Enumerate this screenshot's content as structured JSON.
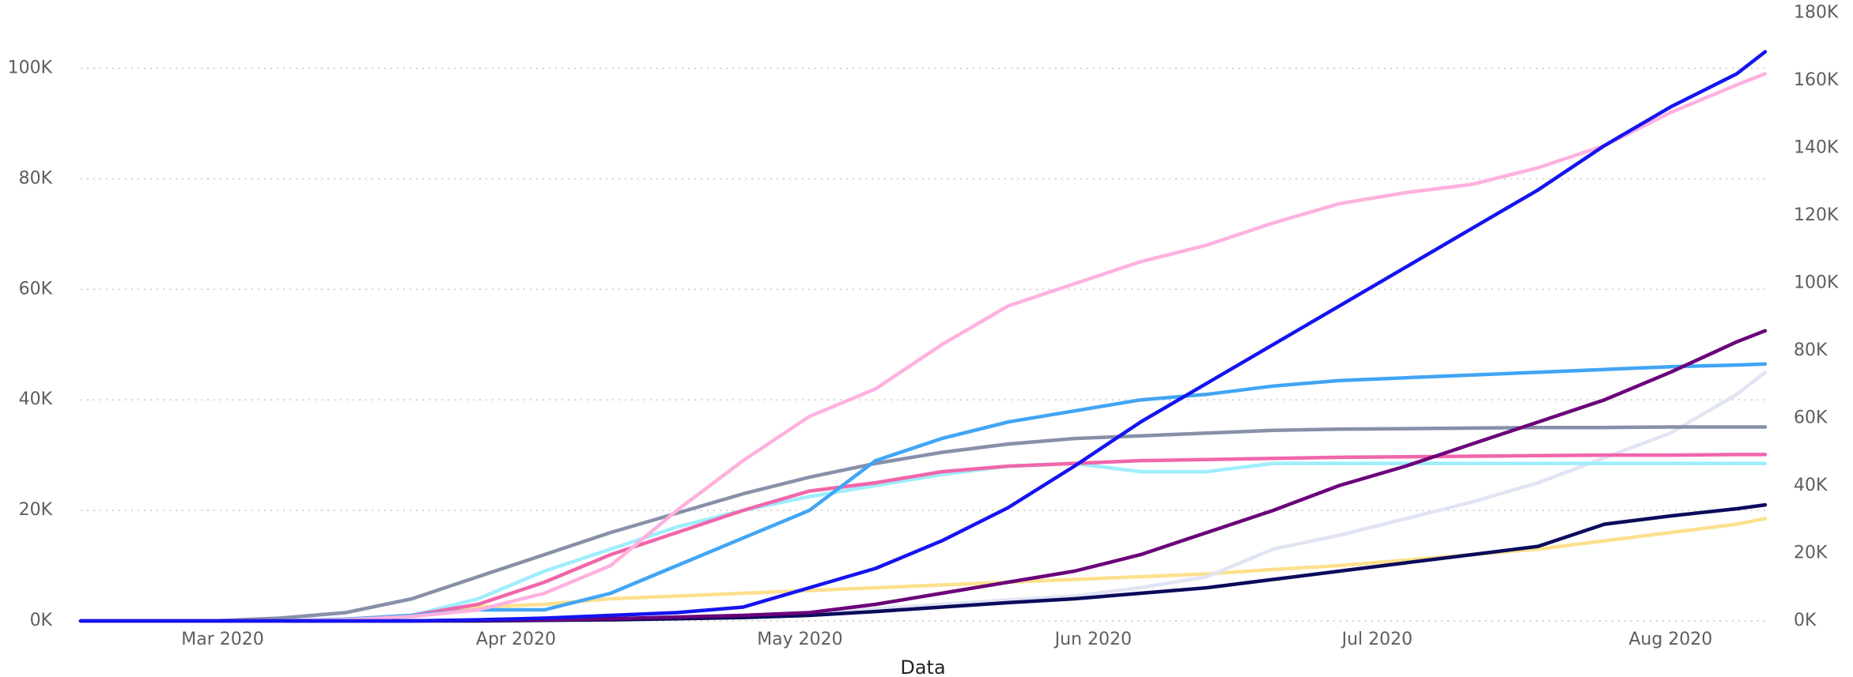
{
  "chart_data": {
    "type": "line",
    "x_label": "Data",
    "x": [
      "2020-02-15",
      "2020-02-22",
      "2020-02-29",
      "2020-03-07",
      "2020-03-14",
      "2020-03-21",
      "2020-03-28",
      "2020-04-04",
      "2020-04-11",
      "2020-04-18",
      "2020-04-25",
      "2020-05-02",
      "2020-05-09",
      "2020-05-16",
      "2020-05-23",
      "2020-05-30",
      "2020-06-06",
      "2020-06-13",
      "2020-06-20",
      "2020-06-27",
      "2020-07-04",
      "2020-07-11",
      "2020-07-18",
      "2020-07-25",
      "2020-08-01",
      "2020-08-08",
      "2020-08-11"
    ],
    "xlim": [
      "2020-02-15",
      "2020-08-11"
    ],
    "xticks": [
      {
        "value": "2020-03-01",
        "label": "Mar 2020"
      },
      {
        "value": "2020-04-01",
        "label": "Apr 2020"
      },
      {
        "value": "2020-05-01",
        "label": "May 2020"
      },
      {
        "value": "2020-06-01",
        "label": "Jun 2020"
      },
      {
        "value": "2020-07-01",
        "label": "Jul 2020"
      },
      {
        "value": "2020-08-01",
        "label": "Aug 2020"
      }
    ],
    "ylim": [
      0,
      110000
    ],
    "yticks": [
      {
        "value": 0,
        "label": "0K"
      },
      {
        "value": 20000,
        "label": "20K"
      },
      {
        "value": 40000,
        "label": "40K"
      },
      {
        "value": 60000,
        "label": "60K"
      },
      {
        "value": 80000,
        "label": "80K"
      },
      {
        "value": 100000,
        "label": "100K"
      }
    ],
    "y2lim": [
      0,
      180000
    ],
    "y2ticks": [
      {
        "value": 0,
        "label": "0K"
      },
      {
        "value": 20000,
        "label": "20K"
      },
      {
        "value": 40000,
        "label": "40K"
      },
      {
        "value": 60000,
        "label": "60K"
      },
      {
        "value": 80000,
        "label": "80K"
      },
      {
        "value": 100000,
        "label": "100K"
      },
      {
        "value": 120000,
        "label": "120K"
      },
      {
        "value": 140000,
        "label": "140K"
      },
      {
        "value": 160000,
        "label": "160K"
      },
      {
        "value": 180000,
        "label": "180K"
      }
    ],
    "grid": true,
    "series": [
      {
        "color": "#fde08e",
        "values": [
          0,
          0,
          0,
          0,
          300,
          1000,
          2500,
          3000,
          4000,
          4500,
          5000,
          5500,
          6000,
          6500,
          7000,
          7500,
          8000,
          8500,
          9300,
          10000,
          11000,
          12000,
          13000,
          14500,
          16000,
          17500,
          18500
        ]
      },
      {
        "color": "#e1e4f3",
        "values": [
          0,
          0,
          0,
          0,
          0,
          0,
          0,
          100,
          300,
          600,
          1000,
          1500,
          2200,
          3000,
          3800,
          4500,
          6000,
          8000,
          13000,
          15500,
          18500,
          21500,
          25000,
          29500,
          34000,
          41000,
          45000
        ]
      },
      {
        "color": "#9eeefc",
        "values": [
          0,
          0,
          0,
          0,
          200,
          1000,
          4000,
          9000,
          13000,
          17000,
          20000,
          22500,
          24500,
          26500,
          28000,
          28500,
          27000,
          27000,
          28500,
          28500,
          28500,
          28500,
          28500,
          28500,
          28500,
          28500,
          28500
        ]
      },
      {
        "color": "#f066aa",
        "values": [
          0,
          0,
          0,
          0,
          200,
          1000,
          3000,
          7000,
          12000,
          16000,
          20000,
          23500,
          25000,
          27000,
          28000,
          28500,
          29000,
          29200,
          29400,
          29600,
          29700,
          29800,
          29900,
          30000,
          30000,
          30100,
          30100
        ]
      },
      {
        "color": "#8790a8",
        "values": [
          0,
          0,
          0,
          500,
          1500,
          4000,
          8000,
          12000,
          16000,
          19500,
          23000,
          26000,
          28500,
          30500,
          32000,
          33000,
          33500,
          34000,
          34500,
          34700,
          34800,
          34900,
          35000,
          35000,
          35100,
          35100,
          35100
        ]
      },
      {
        "color": "#41a5f5",
        "values": [
          0,
          0,
          0,
          0,
          300,
          1000,
          2000,
          2000,
          5000,
          10000,
          15000,
          20000,
          29000,
          33000,
          36000,
          38000,
          40000,
          41000,
          42500,
          43500,
          44000,
          44500,
          45000,
          45500,
          46000,
          46300,
          46500
        ]
      },
      {
        "color": "#0b0b5c",
        "values": [
          0,
          0,
          0,
          0,
          0,
          0,
          0,
          100,
          200,
          400,
          600,
          1000,
          1700,
          2500,
          3300,
          4000,
          5000,
          6000,
          7500,
          9000,
          10500,
          12000,
          13500,
          17500,
          19000,
          20300,
          21000
        ]
      },
      {
        "color": "#6b007a",
        "values": [
          0,
          0,
          0,
          0,
          0,
          0,
          100,
          200,
          400,
          700,
          1000,
          1500,
          3000,
          5000,
          7000,
          9000,
          12000,
          16000,
          20000,
          24500,
          28000,
          32000,
          36000,
          40000,
          45000,
          50500,
          52500
        ]
      },
      {
        "color": "#ffb1de",
        "values": [
          0,
          0,
          0,
          0,
          200,
          800,
          2000,
          5000,
          10000,
          20000,
          29000,
          37000,
          42000,
          50000,
          57000,
          61000,
          65000,
          68000,
          72000,
          75500,
          77500,
          79000,
          82000,
          86000,
          92000,
          97000,
          99000
        ]
      },
      {
        "color": "#1414f0",
        "values": [
          0,
          0,
          0,
          0,
          0,
          0,
          200,
          500,
          1000,
          1500,
          2500,
          6000,
          9500,
          14500,
          20500,
          28000,
          36000,
          43000,
          50000,
          57000,
          64000,
          71000,
          78000,
          86000,
          93000,
          99000,
          103000
        ]
      }
    ]
  }
}
